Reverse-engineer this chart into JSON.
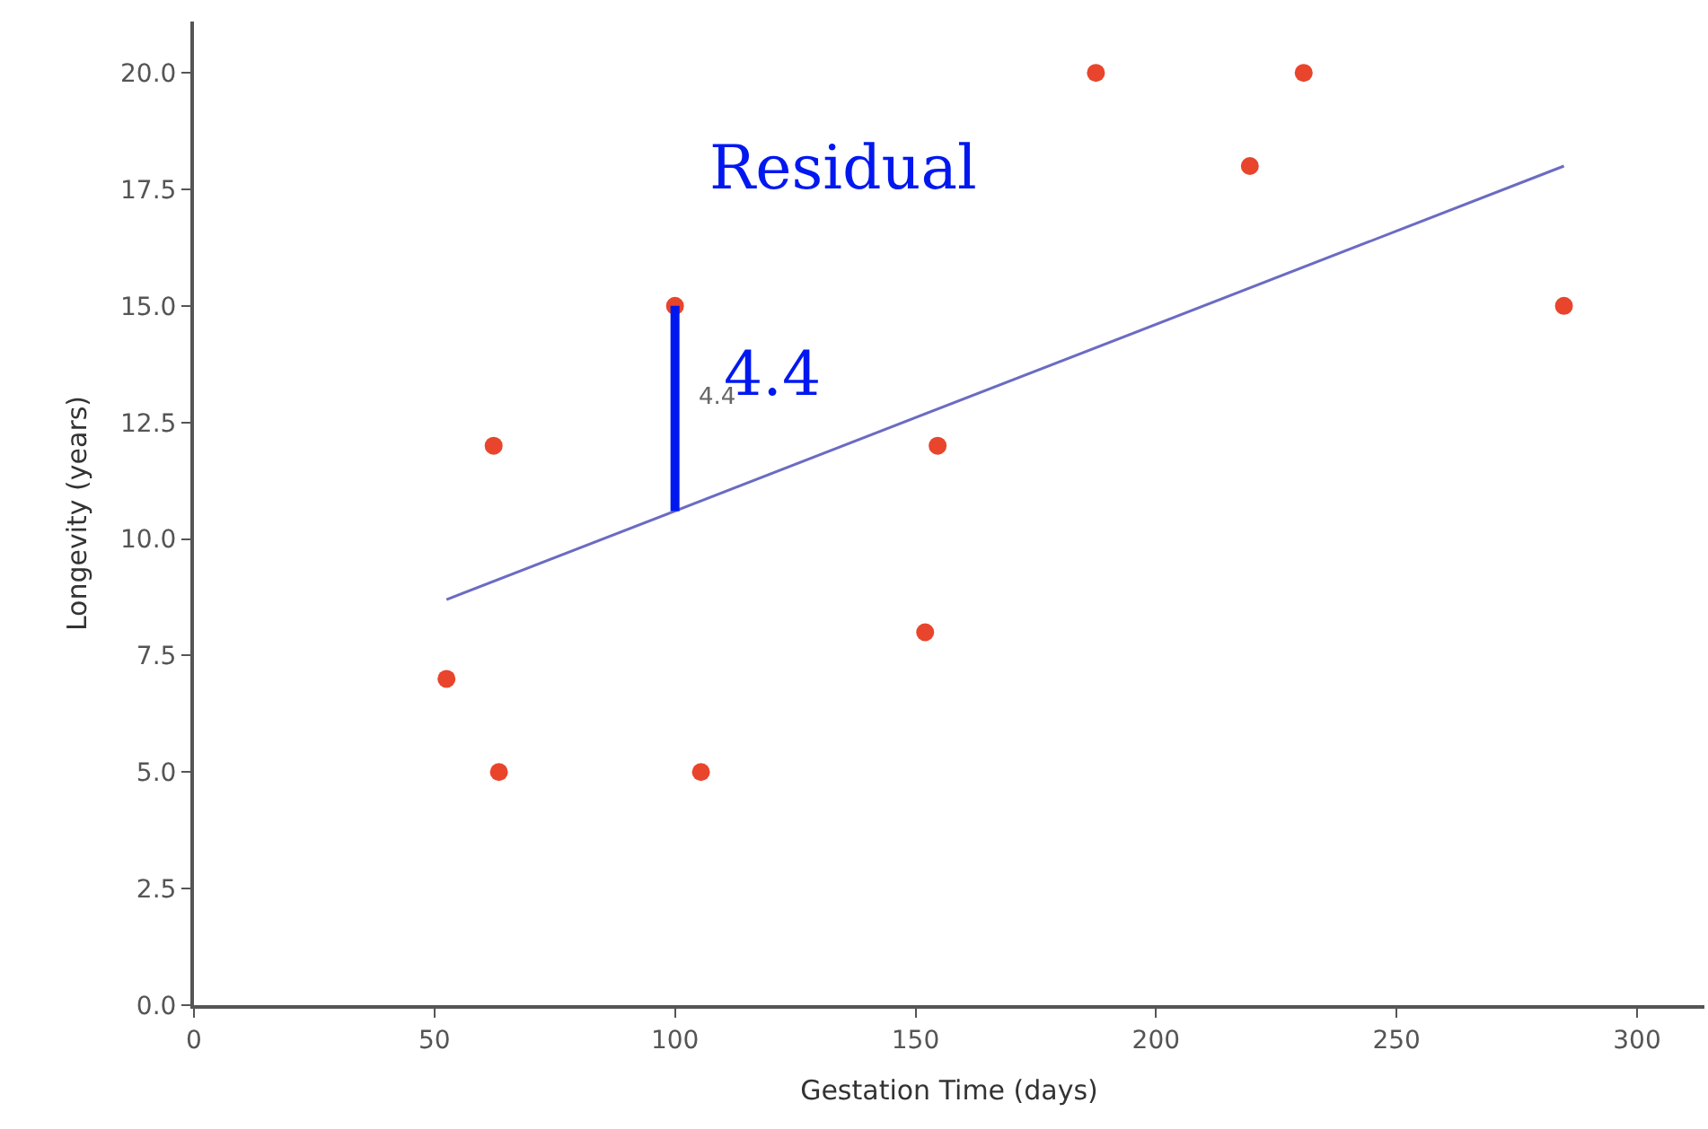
{
  "chart_data": {
    "type": "scatter",
    "xlabel": "Gestation Time (days)",
    "ylabel": "Longevity (years)",
    "series": [
      {
        "marker": "circle",
        "color": "#e8452c",
        "x": [
          52.5,
          62.3,
          63.4,
          100,
          105.4,
          152,
          154.6,
          187.5,
          219.5,
          230.7,
          284.8
        ],
        "values": [
          7,
          12,
          5,
          15,
          5,
          8,
          12,
          20,
          18,
          20,
          15
        ]
      },
      {
        "type": "line",
        "marker": "none",
        "color": "#6b6bc4",
        "x": [
          52.5,
          284.8
        ],
        "values": [
          8.7,
          18
        ]
      },
      {
        "type": "line",
        "marker": "none",
        "color": "#0018f0",
        "x": [
          100,
          100
        ],
        "values": [
          15,
          10.6
        ]
      }
    ],
    "annotations": [
      "4.4",
      "Residual",
      "4.4"
    ],
    "xlim": [
      0,
      314
    ],
    "ylim": [
      0,
      21.1
    ],
    "xticks": [
      0,
      50,
      100,
      150,
      200,
      250,
      300
    ],
    "yticks": [
      {
        "value": 0,
        "label": "0.0"
      },
      {
        "value": 2.5,
        "label": "2.5"
      },
      {
        "value": 5,
        "label": "5.0"
      },
      {
        "value": 7.5,
        "label": "7.5"
      },
      {
        "value": 10,
        "label": "10.0"
      },
      {
        "value": 12.5,
        "label": "12.5"
      },
      {
        "value": 15,
        "label": "15.0"
      },
      {
        "value": 17.5,
        "label": "17.5"
      },
      {
        "value": 20,
        "label": "20.0"
      }
    ],
    "line_style": "solid"
  }
}
